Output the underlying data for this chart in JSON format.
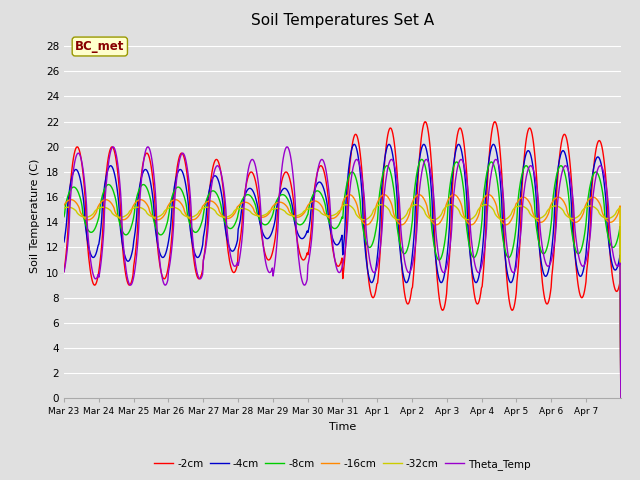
{
  "title": "Soil Temperatures Set A",
  "xlabel": "Time",
  "ylabel": "Soil Temperature (C)",
  "ylim": [
    0,
    29
  ],
  "yticks": [
    0,
    2,
    4,
    6,
    8,
    10,
    12,
    14,
    16,
    18,
    20,
    22,
    24,
    26,
    28
  ],
  "x_labels": [
    "Mar 23",
    "Mar 24",
    "Mar 25",
    "Mar 26",
    "Mar 27",
    "Mar 28",
    "Mar 29",
    "Mar 30",
    "Mar 31",
    "Apr 1",
    "Apr 2",
    "Apr 3",
    "Apr 4",
    "Apr 5",
    "Apr 6",
    "Apr 7"
  ],
  "legend_entries": [
    "-2cm",
    "-4cm",
    "-8cm",
    "-16cm",
    "-32cm",
    "Theta_Temp"
  ],
  "line_colors": [
    "#ff0000",
    "#0000cc",
    "#00cc00",
    "#ff8800",
    "#cccc00",
    "#9900cc"
  ],
  "annotation_text": "BC_met",
  "annotation_bg": "#ffffcc",
  "annotation_fg": "#880000",
  "bg_color": "#e0e0e0",
  "n_days": 16,
  "samples_per_day": 48,
  "base_temp": 14.5
}
